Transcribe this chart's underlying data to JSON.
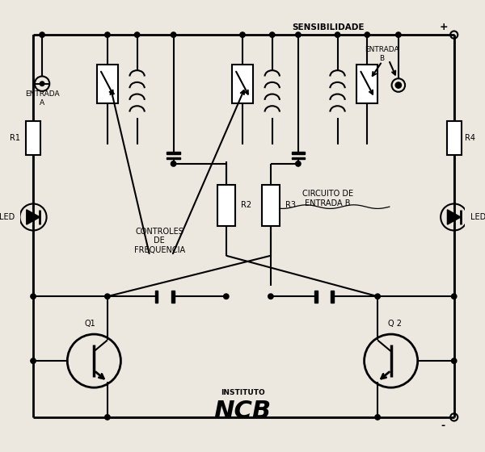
{
  "bg_color": "#ede8df",
  "lc": "#000000",
  "labels": {
    "sensibilidade": "SENSIBILIDADE",
    "entrada_a": "ENTRADA\nA",
    "entrada_b": "ENTRADA\nB",
    "r1": "R1",
    "r2": "R2",
    "r3": "R3",
    "r4": "R4",
    "led": "LED",
    "q1": "Q1",
    "q2": "Q 2",
    "controles": "CONTROLES\nDE\nFREQUENCIA",
    "circuito": "CIRCUITO DE\nENTRADA B",
    "ncb": "NCB",
    "instituto": "INSTITUTO",
    "plus": "+",
    "minus": "-"
  },
  "figsize": [
    6.0,
    5.6
  ],
  "dpi": 100
}
